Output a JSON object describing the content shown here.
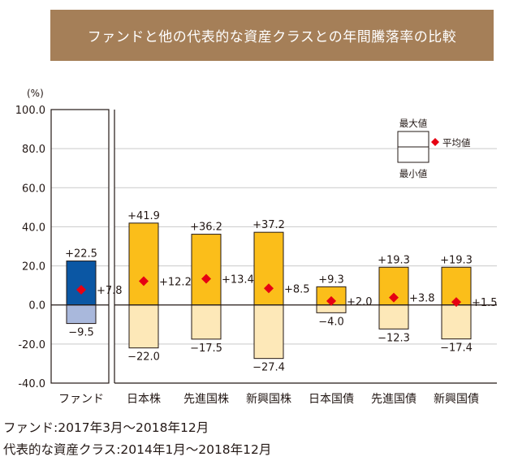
{
  "header": {
    "title": "ファンドと他の代表的な資産クラスとの年間騰落率の比較"
  },
  "chart_data": {
    "type": "bar",
    "subtype": "floating-range-with-average",
    "unit_label": "(%)",
    "ylim": [
      -40,
      100
    ],
    "yticks": [
      100,
      80,
      60,
      40,
      20,
      0,
      -20,
      -40
    ],
    "ytick_labels": [
      "100.0",
      "80.0",
      "60.0",
      "40.0",
      "20.0",
      "0.0",
      "-20.0",
      "-40.0"
    ],
    "categories": [
      "ファンド",
      "日本株",
      "先進国株",
      "新興国株",
      "日本国債",
      "先進国債",
      "新興国債"
    ],
    "max": [
      22.5,
      41.9,
      36.2,
      37.2,
      9.3,
      19.3,
      19.3
    ],
    "min": [
      -9.5,
      -22.0,
      -17.5,
      -27.4,
      -4.0,
      -12.3,
      -17.4
    ],
    "avg": [
      7.8,
      12.2,
      13.4,
      8.5,
      2.0,
      3.8,
      1.5
    ],
    "max_labels": [
      "+22.5",
      "+41.9",
      "+36.2",
      "+37.2",
      "+9.3",
      "+19.3",
      "+19.3"
    ],
    "min_labels": [
      "−9.5",
      "−22.0",
      "−17.5",
      "−27.4",
      "−4.0",
      "−12.3",
      "−17.4"
    ],
    "avg_labels": [
      "+7.8",
      "+12.2",
      "+13.4",
      "+8.5",
      "+2.0",
      "+3.8",
      "+1.5"
    ],
    "legend": {
      "max_label": "最大値",
      "min_label": "最小値",
      "avg_label": "平均値",
      "placement": "top-right"
    },
    "colors": {
      "fund_upper": "#0b57a4",
      "fund_lower": "#a9b8dc",
      "other_upper": "#fbbe1a",
      "other_lower": "#fde8b8",
      "avg_marker": "#e60012",
      "grid": "#c9c9c9",
      "axis": "#231815"
    }
  },
  "notes": [
    "ファンド:2017年3月～2018年12月",
    "代表的な資産クラス:2014年1月～2018年12月"
  ]
}
